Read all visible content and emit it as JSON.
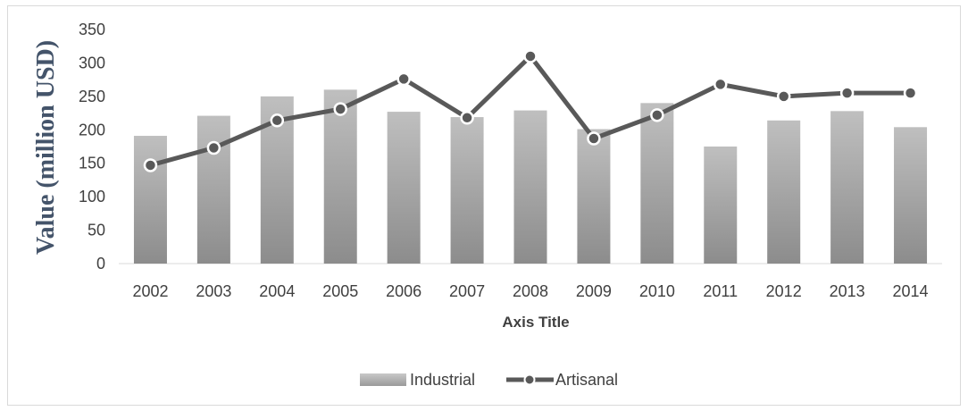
{
  "chart_data": {
    "type": "bar+line",
    "title": "",
    "xlabel": "Axis Title",
    "ylabel": "Value (million USD)",
    "ylim": [
      0,
      350
    ],
    "yticks": [
      0,
      50,
      100,
      150,
      200,
      250,
      300,
      350
    ],
    "grid": false,
    "legend_position": "bottom",
    "categories": [
      "2002",
      "2003",
      "2004",
      "2005",
      "2006",
      "2007",
      "2008",
      "2009",
      "2010",
      "2011",
      "2012",
      "2013",
      "2014"
    ],
    "series": [
      {
        "name": "Industrial",
        "type": "bar",
        "color": "#a6a6a6",
        "values": [
          191,
          221,
          250,
          260,
          227,
          219,
          229,
          201,
          240,
          175,
          214,
          228,
          204
        ]
      },
      {
        "name": "Artisanal",
        "type": "line",
        "color": "#595959",
        "values": [
          147,
          173,
          214,
          231,
          276,
          218,
          310,
          187,
          222,
          268,
          250,
          255,
          255
        ]
      }
    ]
  }
}
